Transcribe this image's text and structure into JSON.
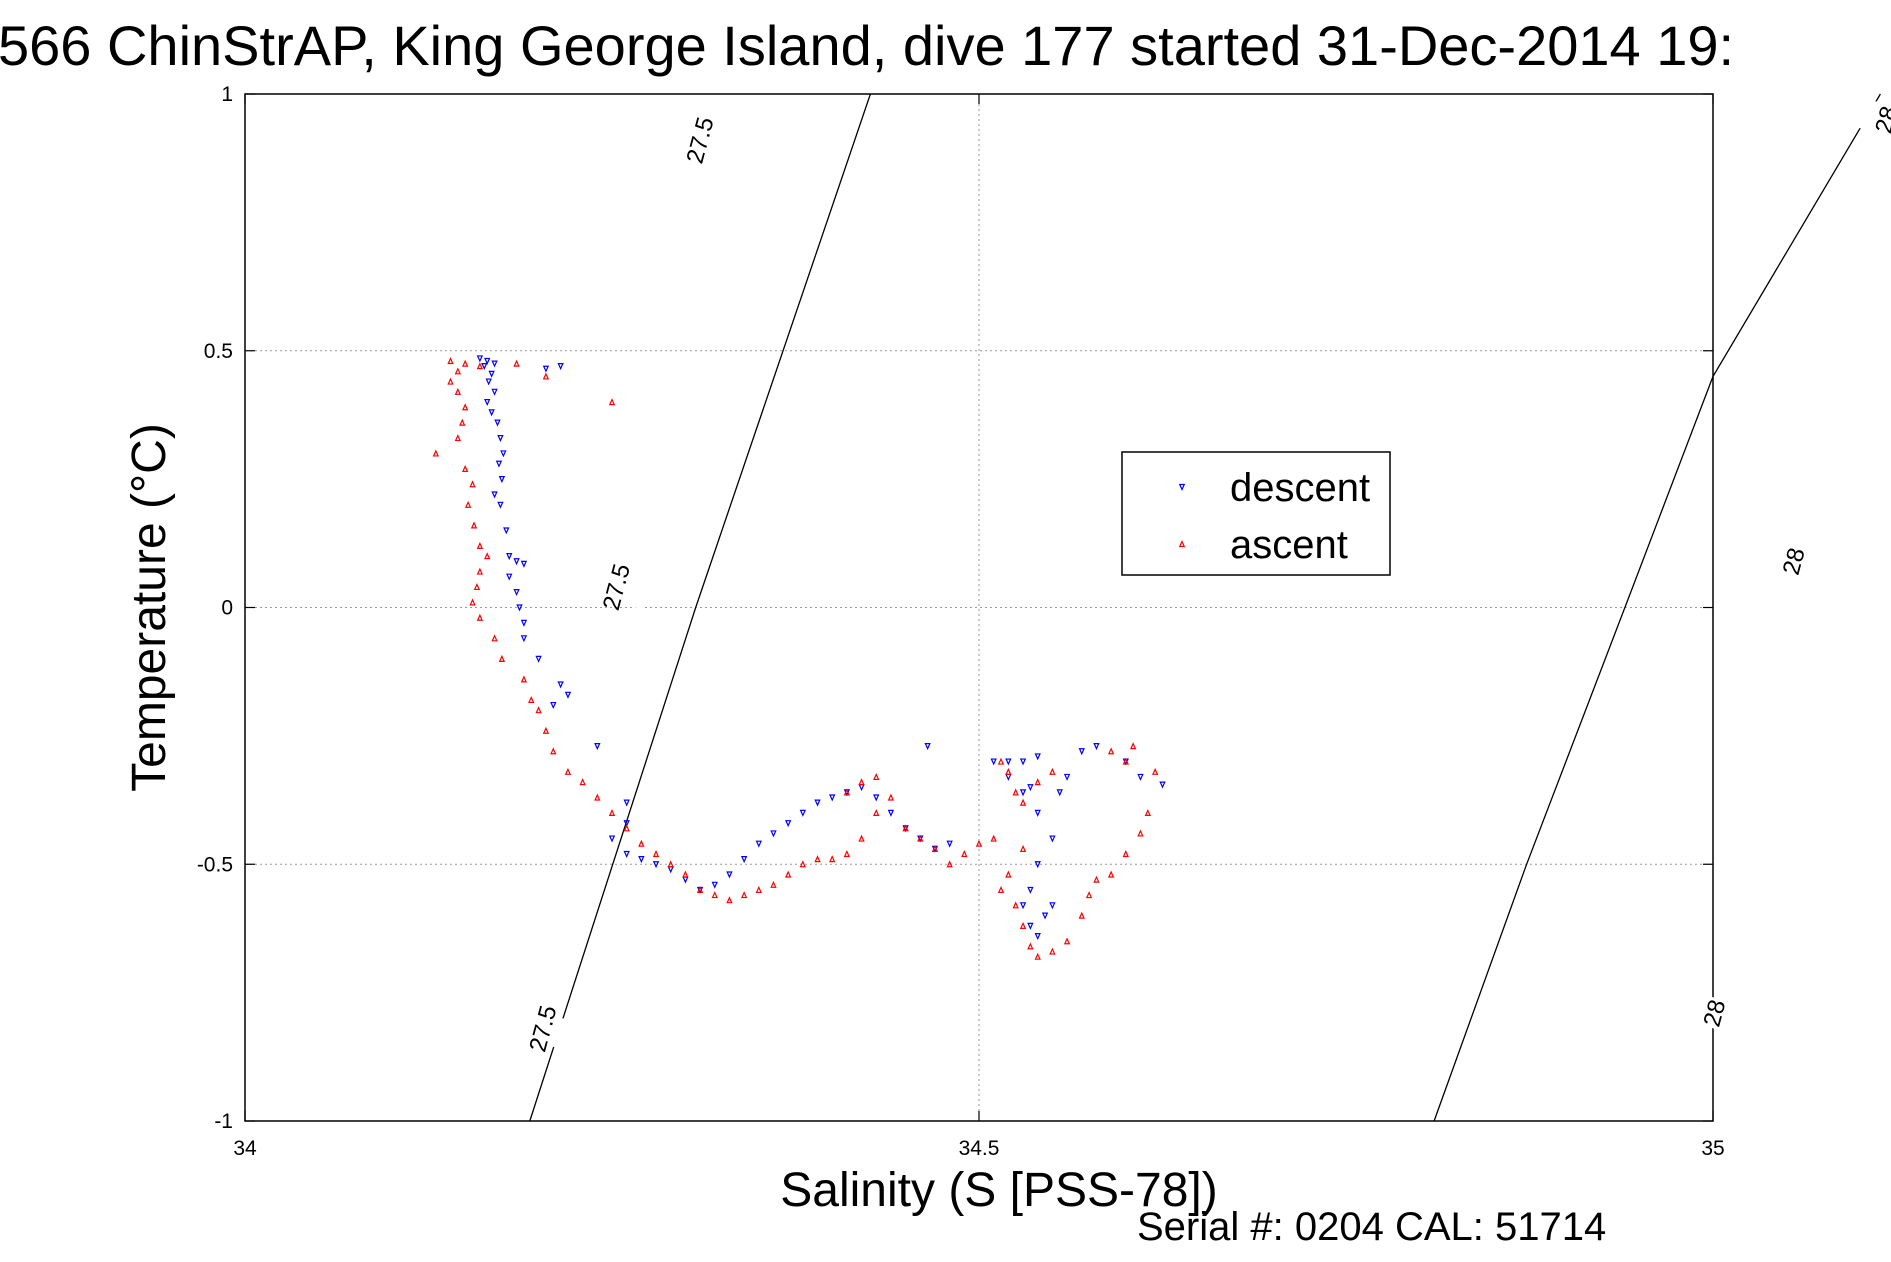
{
  "chart_data": {
    "type": "scatter",
    "title": "566 ChinStrAP, King George Island, dive 177 started 31-Dec-2014 19:",
    "xlabel": "Salinity (S [PSS-78])",
    "ylabel": "Temperature (°C)",
    "xlim": [
      34,
      35
    ],
    "ylim": [
      -1,
      1
    ],
    "xticks": [
      34,
      34.5,
      35
    ],
    "xtick_labels": [
      "34",
      "34.5",
      "35"
    ],
    "yticks": [
      1,
      0.5,
      0,
      -0.5,
      -1
    ],
    "ytick_labels": [
      "1",
      "0.5",
      "0",
      "-0.5",
      "-1"
    ],
    "grid": true,
    "legend_placement": "center-right",
    "density_contours": [
      {
        "label": "27.5",
        "points": [
          [
            34.194,
            -1.0
          ],
          [
            34.307,
            0.0
          ],
          [
            34.426,
            1.0
          ]
        ],
        "labels_at": [
          [
            34.203,
            -0.82
          ],
          [
            34.253,
            0.04
          ],
          [
            34.31,
            0.91
          ]
        ]
      },
      {
        "label": "28",
        "points": [
          [
            34.81,
            -1.0
          ],
          [
            34.873,
            -0.5
          ],
          [
            34.94,
            0.0
          ],
          [
            35.0,
            0.45
          ],
          [
            35.114,
            1.0
          ]
        ],
        "labels_at": [
          [
            35.001,
            -0.79
          ],
          [
            35.055,
            0.09
          ],
          [
            35.118,
            0.95
          ]
        ]
      }
    ],
    "series": [
      {
        "name": "descent",
        "marker": "triangle-down",
        "color": "#0000ff",
        "points": [
          [
            34.16,
            0.485
          ],
          [
            34.165,
            0.48
          ],
          [
            34.17,
            0.475
          ],
          [
            34.163,
            0.47
          ],
          [
            34.205,
            0.465
          ],
          [
            34.215,
            0.47
          ],
          [
            34.168,
            0.455
          ],
          [
            34.166,
            0.44
          ],
          [
            34.17,
            0.42
          ],
          [
            34.165,
            0.4
          ],
          [
            34.168,
            0.38
          ],
          [
            34.172,
            0.36
          ],
          [
            34.174,
            0.33
          ],
          [
            34.176,
            0.3
          ],
          [
            34.173,
            0.28
          ],
          [
            34.175,
            0.25
          ],
          [
            34.17,
            0.22
          ],
          [
            34.174,
            0.2
          ],
          [
            34.178,
            0.15
          ],
          [
            34.18,
            0.1
          ],
          [
            34.185,
            0.09
          ],
          [
            34.19,
            0.085
          ],
          [
            34.18,
            0.06
          ],
          [
            34.185,
            0.03
          ],
          [
            34.187,
            0.0
          ],
          [
            34.19,
            -0.03
          ],
          [
            34.19,
            -0.06
          ],
          [
            34.2,
            -0.1
          ],
          [
            34.215,
            -0.15
          ],
          [
            34.22,
            -0.17
          ],
          [
            34.21,
            -0.19
          ],
          [
            34.24,
            -0.27
          ],
          [
            34.26,
            -0.38
          ],
          [
            34.26,
            -0.42
          ],
          [
            34.25,
            -0.45
          ],
          [
            34.26,
            -0.48
          ],
          [
            34.27,
            -0.49
          ],
          [
            34.28,
            -0.5
          ],
          [
            34.29,
            -0.51
          ],
          [
            34.3,
            -0.53
          ],
          [
            34.31,
            -0.55
          ],
          [
            34.32,
            -0.54
          ],
          [
            34.33,
            -0.52
          ],
          [
            34.34,
            -0.49
          ],
          [
            34.35,
            -0.46
          ],
          [
            34.36,
            -0.44
          ],
          [
            34.37,
            -0.42
          ],
          [
            34.38,
            -0.4
          ],
          [
            34.39,
            -0.38
          ],
          [
            34.4,
            -0.37
          ],
          [
            34.41,
            -0.36
          ],
          [
            34.42,
            -0.35
          ],
          [
            34.43,
            -0.37
          ],
          [
            34.44,
            -0.4
          ],
          [
            34.45,
            -0.43
          ],
          [
            34.46,
            -0.45
          ],
          [
            34.47,
            -0.47
          ],
          [
            34.48,
            -0.46
          ],
          [
            34.465,
            -0.27
          ],
          [
            34.51,
            -0.3
          ],
          [
            34.52,
            -0.3
          ],
          [
            34.53,
            -0.3
          ],
          [
            34.54,
            -0.29
          ],
          [
            34.52,
            -0.33
          ],
          [
            34.53,
            -0.36
          ],
          [
            34.535,
            -0.35
          ],
          [
            34.54,
            -0.4
          ],
          [
            34.55,
            -0.45
          ],
          [
            34.54,
            -0.5
          ],
          [
            34.535,
            -0.55
          ],
          [
            34.53,
            -0.58
          ],
          [
            34.535,
            -0.62
          ],
          [
            34.54,
            -0.64
          ],
          [
            34.545,
            -0.6
          ],
          [
            34.55,
            -0.58
          ],
          [
            34.555,
            -0.36
          ],
          [
            34.56,
            -0.33
          ],
          [
            34.57,
            -0.28
          ],
          [
            34.58,
            -0.27
          ],
          [
            34.6,
            -0.3
          ],
          [
            34.61,
            -0.33
          ],
          [
            34.625,
            -0.345
          ]
        ]
      },
      {
        "name": "ascent",
        "marker": "triangle-up",
        "color": "#ff0000",
        "points": [
          [
            34.14,
            0.48
          ],
          [
            34.15,
            0.475
          ],
          [
            34.16,
            0.47
          ],
          [
            34.145,
            0.46
          ],
          [
            34.185,
            0.475
          ],
          [
            34.205,
            0.45
          ],
          [
            34.25,
            0.4
          ],
          [
            34.14,
            0.44
          ],
          [
            34.145,
            0.42
          ],
          [
            34.15,
            0.39
          ],
          [
            34.148,
            0.36
          ],
          [
            34.13,
            0.3
          ],
          [
            34.145,
            0.33
          ],
          [
            34.15,
            0.27
          ],
          [
            34.155,
            0.24
          ],
          [
            34.152,
            0.2
          ],
          [
            34.156,
            0.16
          ],
          [
            34.16,
            0.12
          ],
          [
            34.165,
            0.1
          ],
          [
            34.16,
            0.07
          ],
          [
            34.158,
            0.04
          ],
          [
            34.155,
            0.01
          ],
          [
            34.16,
            -0.02
          ],
          [
            34.17,
            -0.06
          ],
          [
            34.175,
            -0.1
          ],
          [
            34.19,
            -0.14
          ],
          [
            34.195,
            -0.18
          ],
          [
            34.2,
            -0.2
          ],
          [
            34.205,
            -0.24
          ],
          [
            34.21,
            -0.28
          ],
          [
            34.22,
            -0.32
          ],
          [
            34.23,
            -0.34
          ],
          [
            34.24,
            -0.37
          ],
          [
            34.25,
            -0.4
          ],
          [
            34.26,
            -0.43
          ],
          [
            34.27,
            -0.46
          ],
          [
            34.28,
            -0.48
          ],
          [
            34.29,
            -0.5
          ],
          [
            34.3,
            -0.52
          ],
          [
            34.31,
            -0.55
          ],
          [
            34.32,
            -0.56
          ],
          [
            34.33,
            -0.57
          ],
          [
            34.34,
            -0.56
          ],
          [
            34.35,
            -0.55
          ],
          [
            34.36,
            -0.54
          ],
          [
            34.37,
            -0.52
          ],
          [
            34.38,
            -0.5
          ],
          [
            34.39,
            -0.49
          ],
          [
            34.4,
            -0.49
          ],
          [
            34.41,
            -0.48
          ],
          [
            34.42,
            -0.45
          ],
          [
            34.43,
            -0.4
          ],
          [
            34.41,
            -0.36
          ],
          [
            34.42,
            -0.34
          ],
          [
            34.43,
            -0.33
          ],
          [
            34.44,
            -0.37
          ],
          [
            34.45,
            -0.43
          ],
          [
            34.46,
            -0.45
          ],
          [
            34.47,
            -0.47
          ],
          [
            34.48,
            -0.5
          ],
          [
            34.49,
            -0.48
          ],
          [
            34.5,
            -0.46
          ],
          [
            34.51,
            -0.45
          ],
          [
            34.515,
            -0.3
          ],
          [
            34.52,
            -0.32
          ],
          [
            34.525,
            -0.36
          ],
          [
            34.53,
            -0.38
          ],
          [
            34.54,
            -0.34
          ],
          [
            34.55,
            -0.32
          ],
          [
            34.53,
            -0.47
          ],
          [
            34.52,
            -0.52
          ],
          [
            34.515,
            -0.55
          ],
          [
            34.525,
            -0.58
          ],
          [
            34.53,
            -0.62
          ],
          [
            34.535,
            -0.66
          ],
          [
            34.54,
            -0.68
          ],
          [
            34.55,
            -0.67
          ],
          [
            34.56,
            -0.65
          ],
          [
            34.57,
            -0.6
          ],
          [
            34.575,
            -0.56
          ],
          [
            34.58,
            -0.53
          ],
          [
            34.59,
            -0.52
          ],
          [
            34.6,
            -0.48
          ],
          [
            34.61,
            -0.44
          ],
          [
            34.615,
            -0.4
          ],
          [
            34.6,
            -0.3
          ],
          [
            34.59,
            -0.28
          ],
          [
            34.605,
            -0.27
          ],
          [
            34.62,
            -0.32
          ]
        ]
      }
    ]
  },
  "footer": {
    "serial": "Serial #: 0204  CAL: 51714"
  }
}
